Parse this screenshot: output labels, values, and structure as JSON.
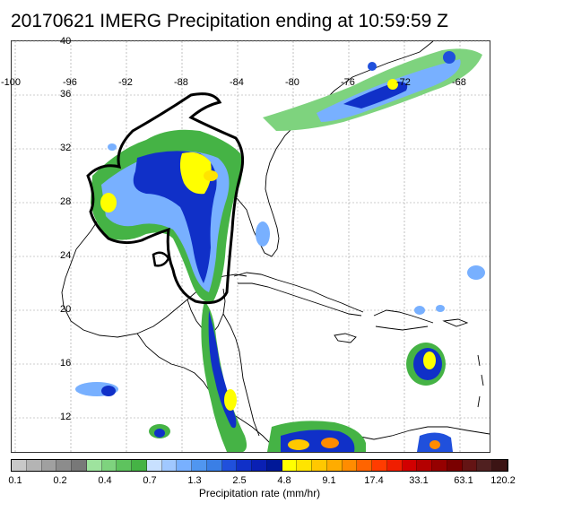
{
  "title": "20170621 IMERG Precipitation ending at 10:59:59 Z",
  "map": {
    "longitude_labels": [
      "-100",
      "-96",
      "-92",
      "-88",
      "-84",
      "-80",
      "-76",
      "-72",
      "-68"
    ],
    "latitude_labels": [
      "40",
      "36",
      "32",
      "28",
      "24",
      "20",
      "16",
      "12"
    ],
    "coastline_color": "#000000"
  },
  "colorbar": {
    "title": "Precipitation rate (mm/hr)",
    "tick_labels": [
      "0.1",
      "0.2",
      "0.4",
      "0.7",
      "1.3",
      "2.5",
      "4.8",
      "9.1",
      "17.4",
      "33.1",
      "63.1",
      "120.2"
    ],
    "colors": [
      "#c8c8c8",
      "#b4b4b4",
      "#a0a0a0",
      "#8c8c8c",
      "#787878",
      "#9ee39e",
      "#7ed37e",
      "#5ec35e",
      "#45b345",
      "#c8e0ff",
      "#a0c8ff",
      "#78b0ff",
      "#5096f0",
      "#3a7fe6",
      "#2050dc",
      "#1030c8",
      "#0a20b4",
      "#001898",
      "#ffff00",
      "#ffe400",
      "#ffc800",
      "#ffac00",
      "#ff8c00",
      "#ff6400",
      "#ff3c00",
      "#f01e00",
      "#d20000",
      "#b40000",
      "#960000",
      "#7a0000",
      "#641414",
      "#502020",
      "#3c1414"
    ]
  }
}
